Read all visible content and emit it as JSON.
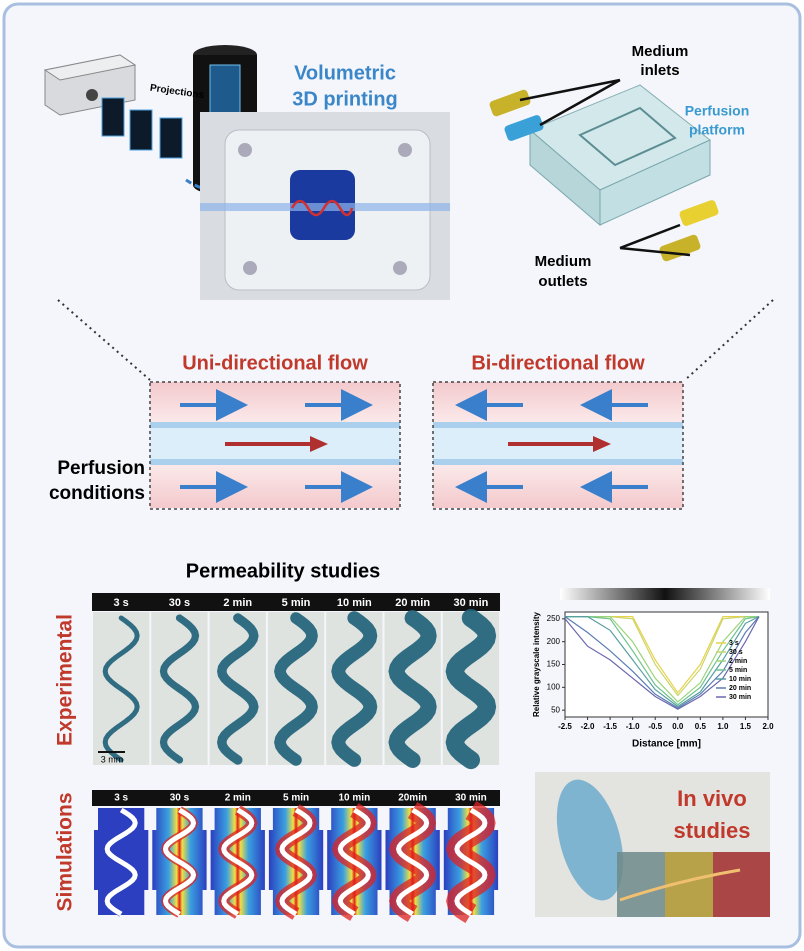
{
  "printing": {
    "title": [
      "Volumetric",
      "3D printing"
    ],
    "projections": "Projections"
  },
  "platform": {
    "inlets": [
      "Medium",
      "inlets"
    ],
    "label": [
      "Perfusion",
      "platform"
    ],
    "outlets": [
      "Medium",
      "outlets"
    ]
  },
  "perfusion": {
    "uni": "Uni-directional flow",
    "bi": "Bi-directional flow",
    "label": [
      "Perfusion",
      "conditions"
    ]
  },
  "permeability": {
    "title": "Permeability studies",
    "experimental": "Experimental",
    "simulations": "Simulations",
    "experimental_times": [
      "3 s",
      "30 s",
      "2 min",
      "5 min",
      "10 min",
      "20 min",
      "30 min"
    ],
    "simulation_times": [
      "3 s",
      "30 s",
      "2 min",
      "5 min",
      "10 min",
      "20min",
      "30 min"
    ],
    "scale_bar": "3 mm"
  },
  "chart_data": {
    "type": "line",
    "xlabel": "Distance [mm]",
    "ylabel": "Relative grayscale intensity",
    "x": [
      -2.5,
      -2.0,
      -1.5,
      -1.0,
      -0.5,
      0.0,
      0.5,
      1.0,
      1.5,
      1.8
    ],
    "series": [
      {
        "name": "3 s",
        "color": "#e8d24a",
        "values": [
          255,
          255,
          255,
          255,
          160,
          88,
          150,
          255,
          255,
          255
        ]
      },
      {
        "name": "30 s",
        "color": "#c8d66a",
        "values": [
          255,
          255,
          255,
          250,
          150,
          82,
          140,
          250,
          255,
          255
        ]
      },
      {
        "name": "2 min",
        "color": "#9bd47a",
        "values": [
          255,
          255,
          255,
          200,
          120,
          68,
          110,
          200,
          255,
          255
        ]
      },
      {
        "name": "5 min",
        "color": "#6cc28e",
        "values": [
          255,
          255,
          250,
          180,
          105,
          62,
          100,
          180,
          250,
          255
        ]
      },
      {
        "name": "10 min",
        "color": "#57a0a2",
        "values": [
          255,
          255,
          225,
          160,
          95,
          58,
          90,
          160,
          240,
          255
        ]
      },
      {
        "name": "20 min",
        "color": "#5a7db2",
        "values": [
          255,
          220,
          180,
          135,
          85,
          55,
          85,
          135,
          220,
          255
        ]
      },
      {
        "name": "30 min",
        "color": "#6b68b0",
        "values": [
          250,
          190,
          160,
          120,
          80,
          52,
          80,
          120,
          200,
          255
        ]
      }
    ],
    "xlim": [
      -2.5,
      2.0
    ],
    "ylim": [
      35,
      265
    ],
    "xticks": [
      -2.5,
      {
        "value": -2.0,
        "label": "-2.0"
      },
      -1.5,
      {
        "value": -1.0,
        "label": "-1.0"
      },
      -0.5,
      {
        "value": 0.0,
        "label": "0.0"
      },
      0.5,
      {
        "value": 1.0,
        "label": "1.0"
      },
      1.5,
      {
        "value": 2.0,
        "label": "2.0"
      }
    ],
    "yticks": [
      50,
      100,
      150,
      200,
      250
    ],
    "legend": "center right"
  },
  "in_vivo": {
    "title": [
      "In vivo",
      "studies"
    ]
  }
}
